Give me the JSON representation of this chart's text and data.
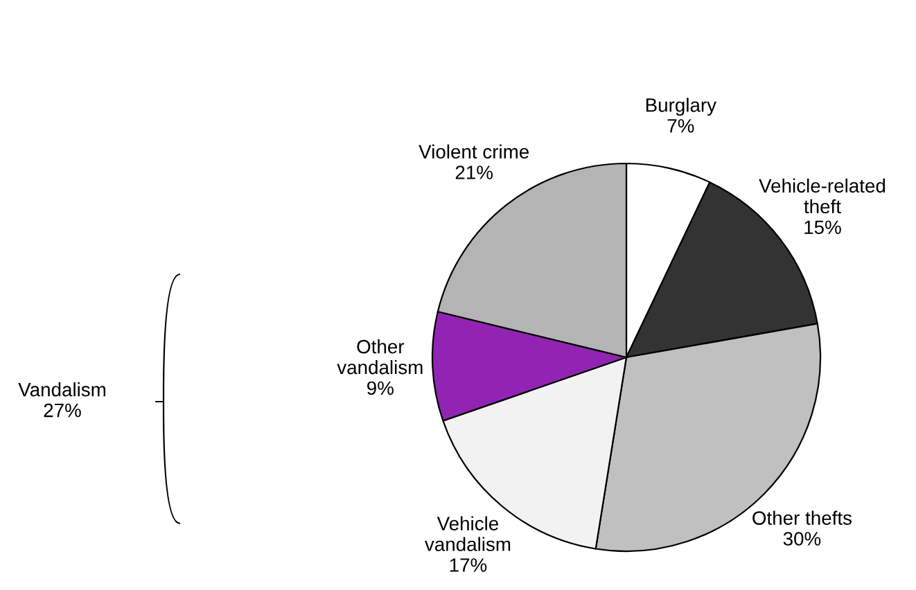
{
  "chart_data": {
    "type": "pie",
    "categories": [
      "Burglary",
      "Vehicle-related\ntheft",
      "Other thefts",
      "Vehicle\nvandalism",
      "Other\nvandalism",
      "Violent crime"
    ],
    "values": [
      7,
      15,
      30,
      17,
      9,
      21
    ],
    "value_labels": [
      "7%",
      "15%",
      "30%",
      "17%",
      "9%",
      "21%"
    ],
    "colors": [
      "#ffffff",
      "#333333",
      "#c0c0c0",
      "#f2f2f2",
      "#9224b4",
      "#b4b4b4"
    ],
    "annotations": [
      "Vandalism\n27%"
    ]
  }
}
